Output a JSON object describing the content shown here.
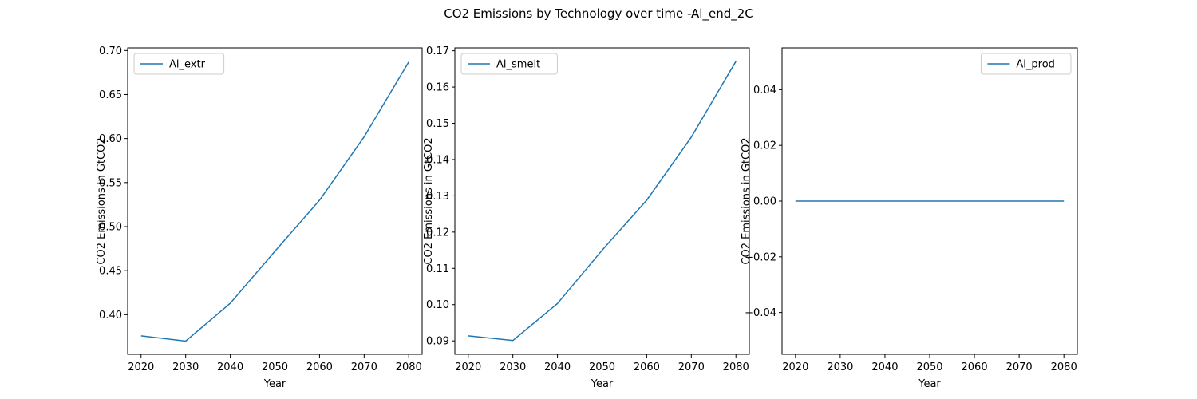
{
  "figure": {
    "title": "CO2 Emissions by Technology over time -Al_end_2C"
  },
  "style": {
    "line_color": "#1f77b4",
    "axis_color": "#000000",
    "legend_border": "#cccccc",
    "background": "#ffffff"
  },
  "chart_data": [
    {
      "type": "line",
      "title": "",
      "xlabel": "Year",
      "ylabel": "CO2 Emissions in GtCO2",
      "x": [
        2020,
        2030,
        2040,
        2050,
        2060,
        2070,
        2080
      ],
      "xticks": [
        2020,
        2030,
        2040,
        2050,
        2060,
        2070,
        2080
      ],
      "xlim": [
        2017,
        2083
      ],
      "ylim": [
        0.355,
        0.703
      ],
      "yticks": [
        0.4,
        0.45,
        0.5,
        0.55,
        0.6,
        0.65,
        0.7
      ],
      "ytick_labels": [
        "0.40",
        "0.45",
        "0.50",
        "0.55",
        "0.60",
        "0.65",
        "0.70"
      ],
      "legend_position": "upper-left",
      "grid": false,
      "series": [
        {
          "name": "Al_extr",
          "values": [
            0.376,
            0.37,
            0.413,
            0.472,
            0.53,
            0.602,
            0.687
          ]
        }
      ]
    },
    {
      "type": "line",
      "title": "",
      "xlabel": "Year",
      "ylabel": "CO2 Emissions in GtCO2",
      "x": [
        2020,
        2030,
        2040,
        2050,
        2060,
        2070,
        2080
      ],
      "xticks": [
        2020,
        2030,
        2040,
        2050,
        2060,
        2070,
        2080
      ],
      "xlim": [
        2017,
        2083
      ],
      "ylim": [
        0.0863,
        0.1708
      ],
      "yticks": [
        0.09,
        0.1,
        0.11,
        0.12,
        0.13,
        0.14,
        0.15,
        0.16,
        0.17
      ],
      "ytick_labels": [
        "0.09",
        "0.10",
        "0.11",
        "0.12",
        "0.13",
        "0.14",
        "0.15",
        "0.16",
        "0.17"
      ],
      "legend_position": "upper-left",
      "grid": false,
      "series": [
        {
          "name": "Al_smelt",
          "values": [
            0.0914,
            0.0901,
            0.1003,
            0.115,
            0.1288,
            0.1462,
            0.1671
          ]
        }
      ]
    },
    {
      "type": "line",
      "title": "",
      "xlabel": "Year",
      "ylabel": "CO2 Emissions in GtCO2",
      "x": [
        2020,
        2030,
        2040,
        2050,
        2060,
        2070,
        2080
      ],
      "xticks": [
        2020,
        2030,
        2040,
        2050,
        2060,
        2070,
        2080
      ],
      "xlim": [
        2017,
        2083
      ],
      "ylim": [
        -0.055,
        0.055
      ],
      "yticks": [
        -0.04,
        -0.02,
        0.0,
        0.02,
        0.04
      ],
      "ytick_labels": [
        "−0.04",
        "−0.02",
        "0.00",
        "0.02",
        "0.04"
      ],
      "legend_position": "upper-right",
      "grid": false,
      "series": [
        {
          "name": "Al_prod",
          "values": [
            0,
            0,
            0,
            0,
            0,
            0,
            0
          ]
        }
      ]
    }
  ]
}
